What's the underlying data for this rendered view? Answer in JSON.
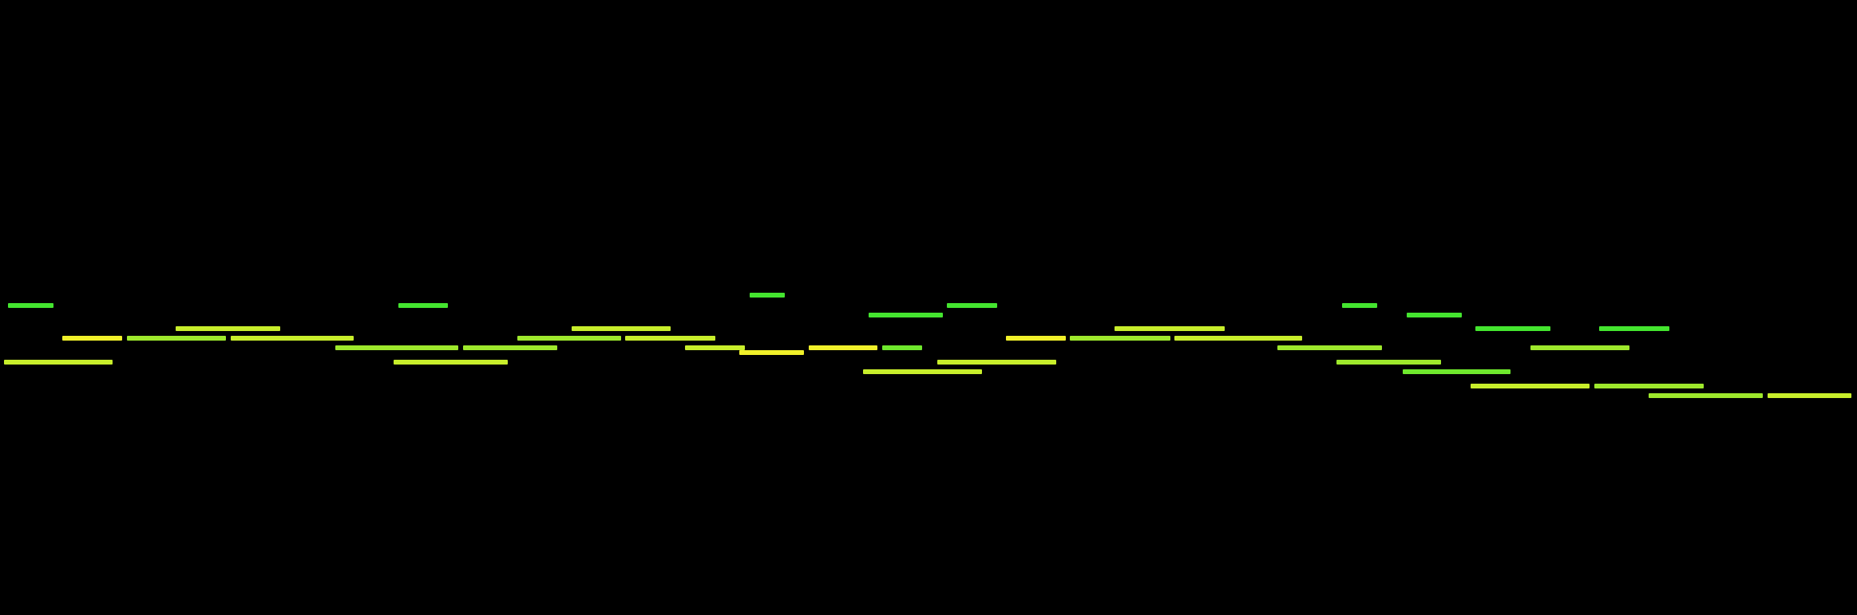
{
  "palette": {
    "background": "#000000",
    "green": "#44e52f",
    "lime_green": "#6fe82d",
    "chartreuse": "#9ee82c",
    "yellow_green": "#c8ee2b",
    "yellow": "#f0f02a"
  },
  "notes": [
    {
      "color": "green"
    },
    {
      "color": "yellow"
    },
    {
      "color": "yellow_green"
    },
    {
      "color": "chartreuse"
    },
    {
      "color": "yellow_green"
    },
    {
      "color": "yellow_green"
    },
    {
      "color": "chartreuse"
    },
    {
      "color": "green"
    },
    {
      "color": "yellow_green"
    },
    {
      "color": "chartreuse"
    },
    {
      "color": "chartreuse"
    },
    {
      "color": "yellow_green"
    },
    {
      "color": "yellow_green"
    },
    {
      "color": "yellow_green"
    },
    {
      "color": "green"
    },
    {
      "color": "yellow"
    },
    {
      "color": "yellow"
    },
    {
      "color": "lime_green"
    },
    {
      "color": "green"
    },
    {
      "color": "yellow_green"
    },
    {
      "color": "green"
    },
    {
      "color": "yellow_green"
    },
    {
      "color": "yellow"
    },
    {
      "color": "chartreuse"
    },
    {
      "color": "yellow_green"
    },
    {
      "color": "yellow_green"
    },
    {
      "color": "chartreuse"
    },
    {
      "color": "green"
    },
    {
      "color": "chartreuse"
    },
    {
      "color": "lime_green"
    },
    {
      "color": "green"
    },
    {
      "color": "yellow_green"
    },
    {
      "color": "green"
    },
    {
      "color": "chartreuse"
    },
    {
      "color": "green"
    },
    {
      "color": "chartreuse"
    },
    {
      "color": "chartreuse"
    },
    {
      "color": "yellow_green"
    },
    {
      "color": "yellow_green"
    }
  ]
}
